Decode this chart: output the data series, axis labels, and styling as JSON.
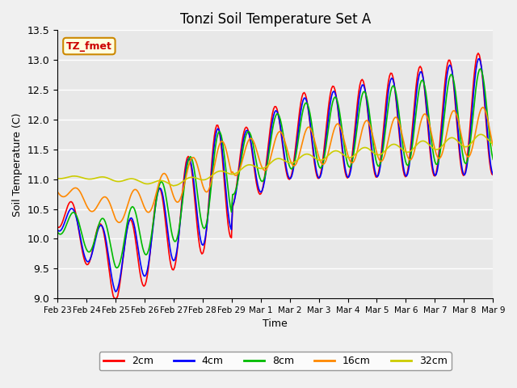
{
  "title": "Tonzi Soil Temperature Set A",
  "xlabel": "Time",
  "ylabel": "Soil Temperature (C)",
  "ylim": [
    9.0,
    13.5
  ],
  "annotation": "TZ_fmet",
  "colors": {
    "2cm": "#ff0000",
    "4cm": "#0000ff",
    "8cm": "#00bb00",
    "16cm": "#ff8800",
    "32cm": "#cccc00"
  },
  "bg_color": "#e8e8e8",
  "xtick_labels": [
    "Feb 23",
    "Feb 24",
    "Feb 25",
    "Feb 26",
    "Feb 27",
    "Feb 28",
    "Feb 29",
    "Mar 1",
    "Mar 2",
    "Mar 3",
    "Mar 4",
    "Mar 5",
    "Mar 6",
    "Mar 7",
    "Mar 8",
    "Mar 9"
  ],
  "ytick_vals": [
    9.0,
    9.5,
    10.0,
    10.5,
    11.0,
    11.5,
    12.0,
    12.5,
    13.0,
    13.5
  ],
  "n_points": 384
}
